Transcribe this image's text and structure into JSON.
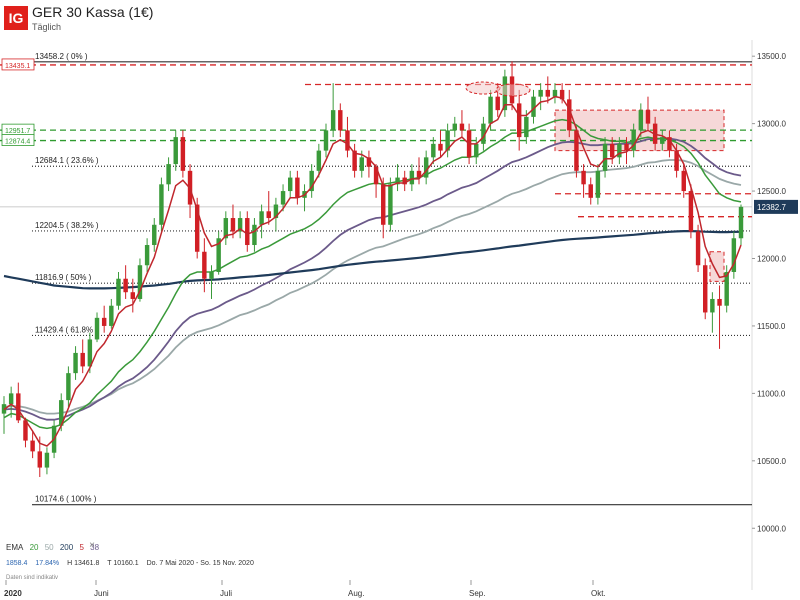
{
  "header": {
    "logo": "IG",
    "title": "GER 30 Kassa (1€)",
    "subtitle": "Täglich"
  },
  "legend": {
    "label": "EMA",
    "periods": [
      "20",
      "50",
      "200",
      "5",
      "38"
    ],
    "period_colors": [
      "#3a9a3a",
      "#9aa8a8",
      "#1f3b5a",
      "#c0272d",
      "#6b5a8a"
    ],
    "close": "×"
  },
  "ohlc": {
    "last": "1858.4",
    "change_pct": "17.84%",
    "high": "H 13461.8",
    "low": "T 10160.1",
    "range": "Do. 7 Mai 2020 - So. 15 Nov. 2020"
  },
  "disclaimer": "Daten sind indikativ",
  "colors": {
    "up": "#3a9a3a",
    "down": "#d11f25",
    "ema20": "#3a9a3a",
    "ema50": "#9aa8a8",
    "ema200": "#1f3b5a",
    "ema5": "#c0272d",
    "ema38": "#6b5a8a",
    "support": "#2f9a2f",
    "resistance": "#d62728",
    "fib": "#333333",
    "zone": "#f2c8c8"
  },
  "chart_data": {
    "type": "candlestick",
    "x_tick_labels": [
      "2020",
      "Juni",
      "Juli",
      "Aug.",
      "Sep.",
      "Okt."
    ],
    "y_ticks": [
      "13500.0",
      "13000.0",
      "12500.0",
      "12000.0",
      "11500.0",
      "11000.0",
      "10500.0",
      "10000.0"
    ],
    "ylim": [
      9950,
      13620
    ],
    "last_price": "12382.7",
    "fibonacci_levels": [
      {
        "label": "13458.2 ( 0% )",
        "value": 13458.2
      },
      {
        "label": "12684.1 ( 23.6% )",
        "value": 12684.1
      },
      {
        "label": "12204.5 ( 38.2% )",
        "value": 12204.5
      },
      {
        "label": "11816.9 ( 50% )",
        "value": 11816.9
      },
      {
        "label": "11429.4 ( 61.8% )",
        "value": 11429.4
      },
      {
        "label": "10174.6 ( 100% )",
        "value": 10174.6
      }
    ],
    "resistance_levels": [
      {
        "label": "13435.1",
        "value": 13435.1
      },
      {
        "label": "",
        "value": 13290
      },
      {
        "label": "",
        "value": 12480
      },
      {
        "label": "",
        "value": 12310
      }
    ],
    "support_levels": [
      {
        "label": "12951.7",
        "value": 12951.7
      },
      {
        "label": "12874.4",
        "value": 12874.4
      }
    ],
    "resistance_zones": [
      {
        "from": 12800,
        "to": 13100
      },
      {
        "from": 11830,
        "to": 12050
      }
    ],
    "candles": [
      [
        10850,
        10980,
        10700,
        10920
      ],
      [
        10920,
        11050,
        10820,
        11000
      ],
      [
        11000,
        11080,
        10780,
        10800
      ],
      [
        10800,
        10820,
        10600,
        10650
      ],
      [
        10650,
        10720,
        10520,
        10570
      ],
      [
        10570,
        10680,
        10380,
        10450
      ],
      [
        10450,
        10600,
        10400,
        10560
      ],
      [
        10560,
        10800,
        10520,
        10760
      ],
      [
        10760,
        11000,
        10720,
        10950
      ],
      [
        10950,
        11200,
        10900,
        11150
      ],
      [
        11150,
        11350,
        11100,
        11300
      ],
      [
        11300,
        11400,
        11150,
        11200
      ],
      [
        11200,
        11450,
        11150,
        11400
      ],
      [
        11400,
        11600,
        11380,
        11560
      ],
      [
        11560,
        11650,
        11450,
        11500
      ],
      [
        11500,
        11700,
        11480,
        11650
      ],
      [
        11650,
        11900,
        11620,
        11850
      ],
      [
        11850,
        11950,
        11700,
        11750
      ],
      [
        11750,
        11850,
        11600,
        11700
      ],
      [
        11700,
        12000,
        11680,
        11950
      ],
      [
        11950,
        12150,
        11900,
        12100
      ],
      [
        12100,
        12300,
        12050,
        12250
      ],
      [
        12250,
        12600,
        12200,
        12550
      ],
      [
        12550,
        12750,
        12500,
        12700
      ],
      [
        12700,
        12950,
        12650,
        12900
      ],
      [
        12900,
        12950,
        12600,
        12650
      ],
      [
        12650,
        12700,
        12300,
        12400
      ],
      [
        12400,
        12450,
        12000,
        12050
      ],
      [
        12050,
        12150,
        11750,
        11850
      ],
      [
        11850,
        11950,
        11700,
        11900
      ],
      [
        11900,
        12200,
        11880,
        12150
      ],
      [
        12150,
        12350,
        12100,
        12300
      ],
      [
        12300,
        12400,
        12150,
        12200
      ],
      [
        12200,
        12350,
        12150,
        12300
      ],
      [
        12300,
        12350,
        12050,
        12100
      ],
      [
        12100,
        12300,
        12050,
        12250
      ],
      [
        12250,
        12400,
        12150,
        12350
      ],
      [
        12350,
        12500,
        12250,
        12300
      ],
      [
        12300,
        12450,
        12200,
        12400
      ],
      [
        12400,
        12550,
        12350,
        12500
      ],
      [
        12500,
        12650,
        12450,
        12600
      ],
      [
        12600,
        12650,
        12400,
        12450
      ],
      [
        12450,
        12550,
        12350,
        12500
      ],
      [
        12500,
        12700,
        12450,
        12650
      ],
      [
        12650,
        12850,
        12600,
        12800
      ],
      [
        12800,
        13000,
        12750,
        12950
      ],
      [
        12950,
        13300,
        12900,
        13100
      ],
      [
        13100,
        13150,
        12900,
        12950
      ],
      [
        12950,
        13050,
        12750,
        12800
      ],
      [
        12800,
        12850,
        12600,
        12650
      ],
      [
        12650,
        12800,
        12600,
        12750
      ],
      [
        12750,
        12800,
        12600,
        12680
      ],
      [
        12680,
        12700,
        12450,
        12550
      ],
      [
        12550,
        12600,
        12150,
        12250
      ],
      [
        12250,
        12600,
        12200,
        12550
      ],
      [
        12550,
        12700,
        12500,
        12600
      ],
      [
        12600,
        12650,
        12500,
        12550
      ],
      [
        12550,
        12700,
        12500,
        12650
      ],
      [
        12650,
        12750,
        12550,
        12600
      ],
      [
        12600,
        12800,
        12550,
        12750
      ],
      [
        12750,
        12900,
        12700,
        12850
      ],
      [
        12850,
        12950,
        12750,
        12800
      ],
      [
        12800,
        13000,
        12750,
        12950
      ],
      [
        12950,
        13050,
        12900,
        13000
      ],
      [
        13000,
        13100,
        12900,
        12950
      ],
      [
        12950,
        13000,
        12700,
        12750
      ],
      [
        12750,
        12900,
        12700,
        12850
      ],
      [
        12850,
        13050,
        12800,
        13000
      ],
      [
        13000,
        13250,
        12950,
        13200
      ],
      [
        13200,
        13300,
        13050,
        13100
      ],
      [
        13100,
        13400,
        13050,
        13350
      ],
      [
        13350,
        13462,
        13100,
        13150
      ],
      [
        13150,
        13250,
        12800,
        12900
      ],
      [
        12900,
        13100,
        12850,
        13050
      ],
      [
        13050,
        13250,
        13000,
        13200
      ],
      [
        13200,
        13300,
        13100,
        13250
      ],
      [
        13250,
        13350,
        13150,
        13200
      ],
      [
        13200,
        13300,
        13150,
        13250
      ],
      [
        13250,
        13300,
        13150,
        13180
      ],
      [
        13180,
        13250,
        12900,
        12950
      ],
      [
        12950,
        12980,
        12600,
        12650
      ],
      [
        12650,
        12700,
        12450,
        12550
      ],
      [
        12550,
        12600,
        12400,
        12450
      ],
      [
        12450,
        12700,
        12400,
        12650
      ],
      [
        12650,
        12900,
        12600,
        12850
      ],
      [
        12850,
        12900,
        12700,
        12750
      ],
      [
        12750,
        12900,
        12700,
        12850
      ],
      [
        12850,
        12900,
        12700,
        12800
      ],
      [
        12800,
        13000,
        12750,
        12950
      ],
      [
        12950,
        13150,
        12900,
        13100
      ],
      [
        13100,
        13200,
        12950,
        13000
      ],
      [
        13000,
        13050,
        12800,
        12850
      ],
      [
        12850,
        12950,
        12800,
        12900
      ],
      [
        12900,
        12950,
        12750,
        12800
      ],
      [
        12800,
        12850,
        12600,
        12650
      ],
      [
        12650,
        12700,
        12450,
        12500
      ],
      [
        12500,
        12550,
        12150,
        12200
      ],
      [
        12200,
        12250,
        11900,
        11950
      ],
      [
        11950,
        12000,
        11550,
        11600
      ],
      [
        11600,
        11750,
        11450,
        11700
      ],
      [
        11700,
        11800,
        11330,
        11650
      ],
      [
        11650,
        11950,
        11600,
        11900
      ],
      [
        11900,
        12200,
        11850,
        12150
      ],
      [
        12150,
        12400,
        12100,
        12383
      ]
    ],
    "ema20": [
      10820,
      10850,
      10840,
      10810,
      10780,
      10750,
      10740,
      10750,
      10770,
      10810,
      10860,
      10890,
      10930,
      10990,
      11040,
      11090,
      11160,
      11210,
      11250,
      11310,
      11380,
      11460,
      11550,
      11640,
      11740,
      11830,
      11880,
      11900,
      11900,
      11900,
      11920,
      11950,
      11980,
      12010,
      12020,
      12040,
      12070,
      12090,
      12120,
      12150,
      12180,
      12200,
      12220,
      12250,
      12290,
      12340,
      12400,
      12450,
      12490,
      12510,
      12530,
      12550,
      12560,
      12550,
      12560,
      12570,
      12580,
      12590,
      12600,
      12620,
      12650,
      12670,
      12700,
      12730,
      12750,
      12750,
      12760,
      12790,
      12830,
      12860,
      12900,
      12930,
      12930,
      12940,
      12960,
      12980,
      13000,
      13020,
      13030,
      13020,
      12990,
      12950,
      12910,
      12890,
      12880,
      12870,
      12870,
      12860,
      12870,
      12890,
      12900,
      12890,
      12890,
      12880,
      12860,
      12830,
      12780,
      12710,
      12620,
      12550,
      12480,
      12450,
      12430,
      12420
    ],
    "ema50": [
      10900,
      10905,
      10905,
      10895,
      10880,
      10860,
      10850,
      10850,
      10855,
      10865,
      10885,
      10900,
      10920,
      10945,
      10970,
      10995,
      11030,
      11055,
      11075,
      11105,
      11140,
      11180,
      11230,
      11280,
      11340,
      11390,
      11430,
      11455,
      11470,
      11485,
      11505,
      11530,
      11555,
      11580,
      11595,
      11615,
      11640,
      11660,
      11690,
      11715,
      11745,
      11765,
      11790,
      11815,
      11845,
      11880,
      11920,
      11955,
      11985,
      12010,
      12035,
      12060,
      12080,
      12090,
      12110,
      12130,
      12150,
      12165,
      12180,
      12200,
      12225,
      12245,
      12270,
      12295,
      12315,
      12330,
      12350,
      12375,
      12400,
      12425,
      12455,
      12480,
      12495,
      12515,
      12540,
      12560,
      12585,
      12605,
      12625,
      12635,
      12640,
      12640,
      12640,
      12645,
      12655,
      12660,
      12665,
      12670,
      12680,
      12695,
      12710,
      12715,
      12725,
      12730,
      12730,
      12725,
      12710,
      12685,
      12650,
      12620,
      12590,
      12570,
      12555,
      12545
    ],
    "ema200": [
      11870,
      11860,
      11850,
      11840,
      11830,
      11820,
      11810,
      11800,
      11795,
      11790,
      11785,
      11780,
      11778,
      11778,
      11778,
      11780,
      11782,
      11785,
      11788,
      11792,
      11796,
      11800,
      11806,
      11812,
      11820,
      11828,
      11834,
      11838,
      11840,
      11842,
      11845,
      11850,
      11855,
      11860,
      11864,
      11868,
      11873,
      11878,
      11884,
      11890,
      11896,
      11902,
      11908,
      11914,
      11921,
      11929,
      11938,
      11946,
      11953,
      11959,
      11965,
      11971,
      11976,
      11980,
      11985,
      11990,
      11995,
      12000,
      12005,
      12011,
      12017,
      12023,
      12030,
      12037,
      12043,
      12048,
      12054,
      12061,
      12068,
      12075,
      12083,
      12090,
      12096,
      12103,
      12110,
      12117,
      12124,
      12131,
      12137,
      12142,
      12146,
      12149,
      12152,
      12156,
      12160,
      12164,
      12168,
      12172,
      12176,
      12181,
      12186,
      12190,
      12194,
      12198,
      12201,
      12203,
      12203,
      12202,
      12199,
      12197,
      12196,
      12196,
      12197,
      12198
    ],
    "ema5": [
      10880,
      10920,
      10880,
      10800,
      10720,
      10630,
      10610,
      10660,
      10760,
      10890,
      11030,
      11090,
      11190,
      11310,
      11370,
      11460,
      11590,
      11640,
      11660,
      11760,
      11890,
      12010,
      12190,
      12360,
      12540,
      12580,
      12520,
      12360,
      12190,
      12090,
      12110,
      12170,
      12180,
      12220,
      12180,
      12200,
      12250,
      12270,
      12310,
      12370,
      12450,
      12450,
      12470,
      12530,
      12620,
      12730,
      12850,
      12880,
      12850,
      12780,
      12770,
      12740,
      12680,
      12540,
      12540,
      12560,
      12560,
      12590,
      12590,
      12650,
      12720,
      12750,
      12810,
      12870,
      12900,
      12850,
      12850,
      12900,
      13000,
      13030,
      13140,
      13140,
      13060,
      13060,
      13110,
      13160,
      13170,
      13200,
      13190,
      13110,
      12960,
      12820,
      12700,
      12680,
      12740,
      12740,
      12780,
      12790,
      12840,
      12930,
      12950,
      12920,
      12910,
      12880,
      12800,
      12700,
      12530,
      12340,
      12090,
      11960,
      11860,
      11870,
      11960,
      12100
    ],
    "ema38": [
      10880,
      10885,
      10880,
      10865,
      10845,
      10820,
      10805,
      10805,
      10815,
      10835,
      10860,
      10880,
      10905,
      10940,
      10970,
      11005,
      11050,
      11085,
      11110,
      11150,
      11195,
      11250,
      11315,
      11385,
      11460,
      11520,
      11565,
      11590,
      11605,
      11620,
      11645,
      11675,
      11700,
      11725,
      11745,
      11770,
      11800,
      11825,
      11855,
      11885,
      11920,
      11945,
      11970,
      12000,
      12035,
      12080,
      12130,
      12175,
      12210,
      12235,
      12260,
      12285,
      12300,
      12305,
      12320,
      12335,
      12350,
      12365,
      12380,
      12400,
      12425,
      12445,
      12475,
      12500,
      12525,
      12540,
      12560,
      12590,
      12620,
      12650,
      12685,
      12715,
      12730,
      12750,
      12775,
      12800,
      12825,
      12845,
      12860,
      12865,
      12860,
      12850,
      12840,
      12840,
      12845,
      12845,
      12850,
      12850,
      12855,
      12870,
      12885,
      12885,
      12890,
      12890,
      12880,
      12865,
      12835,
      12795,
      12745,
      12705,
      12665,
      12640,
      12625,
      12615
    ]
  }
}
